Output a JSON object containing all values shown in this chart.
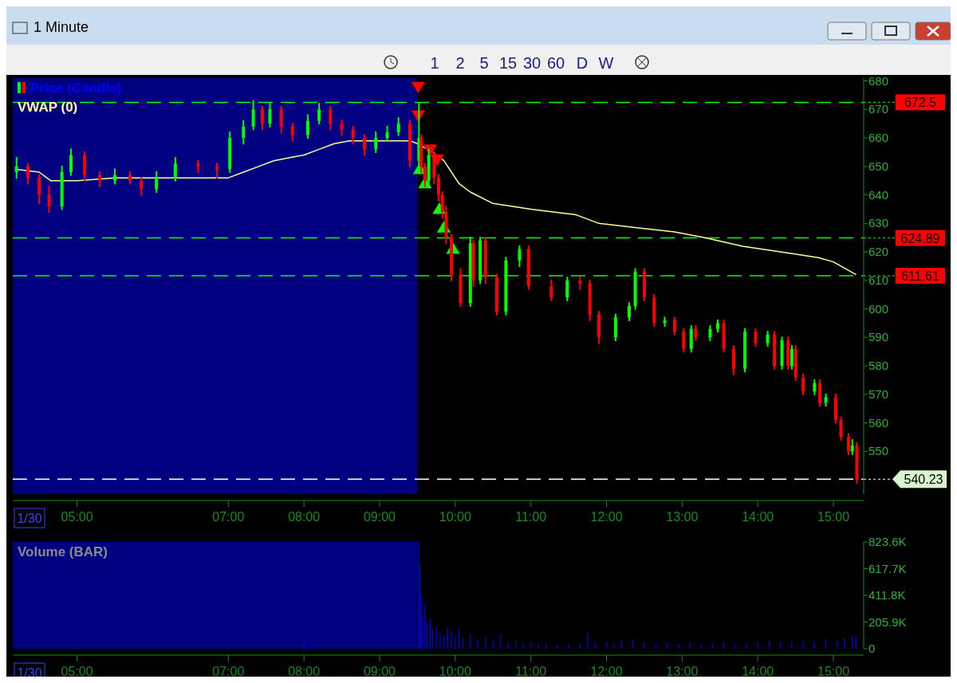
{
  "chart_data": [
    {
      "type": "other",
      "title": "1 Minute",
      "annotations": [
        "1",
        "2",
        "5",
        "15",
        "30",
        "60",
        "D",
        "W"
      ]
    },
    {
      "type": "candlestick",
      "legend": "top left",
      "grid": false,
      "xlim": [
        4.15,
        15.4
      ],
      "ylim": [
        535,
        681
      ],
      "xticks": [
        {
          "value": 5,
          "label": "05:00"
        },
        {
          "value": 7,
          "label": "07:00"
        },
        {
          "value": 8,
          "label": "08:00"
        },
        {
          "value": 9,
          "label": "09:00"
        },
        {
          "value": 10,
          "label": "10:00"
        },
        {
          "value": 11,
          "label": "11:00"
        },
        {
          "value": 12,
          "label": "12:00"
        },
        {
          "value": 13,
          "label": "13:00"
        },
        {
          "value": 14,
          "label": "14:00"
        },
        {
          "value": 15,
          "label": "15:00"
        }
      ],
      "yticks": [
        550,
        560,
        570,
        580,
        590,
        600,
        610,
        620,
        630,
        640,
        650,
        660,
        670,
        680
      ],
      "annotations": [
        "1/30"
      ],
      "bands": [
        {
          "axis": "x",
          "from": 4.15,
          "to": 9.5,
          "color": "#000080"
        }
      ],
      "ref_lines": [
        {
          "axis": "y",
          "value": 672.5,
          "label": "672.5",
          "color": "#00ff00",
          "line_style": "dashed"
        },
        {
          "axis": "y",
          "value": 624.89,
          "label": "624.89",
          "color": "#00ff00",
          "line_style": "dashed"
        },
        {
          "axis": "y",
          "value": 611.61,
          "label": "611.61",
          "color": "#00ff00",
          "line_style": "dashed"
        },
        {
          "axis": "y",
          "value": 540.23,
          "label": "540.23",
          "color": "#ffffff",
          "line_style": "dashed"
        }
      ],
      "series": [
        {
          "type": "candlestick",
          "name": "Price (Candle)",
          "color": "#0000ff",
          "colors": [
            "#00ff00",
            "#ff0000",
            "#ff0000",
            "#ff0000",
            "#00ff00",
            "#00ff00",
            "#ff0000",
            "#ff0000",
            "#00ff00",
            "#ff0000",
            "#ff0000",
            "#00ff00",
            "#00ff00",
            "#ff0000",
            "#ff0000",
            "#00ff00",
            "#00ff00",
            "#00ff00",
            "#ff0000",
            "#00ff00",
            "#ff0000",
            "#ff0000",
            "#00ff00",
            "#00ff00",
            "#ff0000",
            "#ff0000",
            "#ff0000",
            "#ff0000",
            "#00ff00",
            "#00ff00",
            "#00ff00",
            "#ff0000",
            "#00ff00",
            "#ff0000",
            "#ff0000",
            "#00ff00",
            "#ff0000",
            "#ff0000",
            "#ff0000",
            "#ff0000",
            "#ff0000",
            "#ff0000",
            "#00ff00",
            "#ff0000",
            "#00ff00",
            "#ff0000",
            "#ff0000",
            "#00ff00",
            "#00ff00",
            "#ff0000",
            "#ff0000",
            "#00ff00",
            "#ff0000",
            "#ff0000",
            "#ff0000",
            "#00ff00",
            "#00ff00",
            "#00ff00",
            "#ff0000",
            "#ff0000",
            "#00ff00",
            "#ff0000",
            "#ff0000",
            "#00ff00",
            "#ff0000",
            "#00ff00",
            "#00ff00",
            "#ff0000",
            "#ff0000",
            "#00ff00",
            "#ff0000",
            "#00ff00",
            "#ff0000",
            "#00ff00",
            "#ff0000",
            "#00ff00",
            "#ff0000",
            "#ff0000",
            "#00ff00",
            "#ff0000",
            "#00ff00",
            "#ff0000",
            "#ff0000",
            "#ff0000",
            "#00ff00",
            "#ff0000"
          ],
          "x": [
            4.2,
            4.35,
            4.5,
            4.63,
            4.8,
            4.92,
            5.1,
            5.3,
            5.5,
            5.7,
            5.85,
            6.05,
            6.3,
            6.6,
            6.85,
            7.02,
            7.2,
            7.33,
            7.45,
            7.55,
            7.7,
            7.85,
            8.05,
            8.2,
            8.35,
            8.5,
            8.65,
            8.8,
            8.95,
            9.1,
            9.25,
            9.4,
            9.52,
            9.55,
            9.6,
            9.65,
            9.72,
            9.78,
            9.83,
            9.88,
            9.95,
            10.07,
            10.2,
            10.24,
            10.33,
            10.4,
            10.55,
            10.67,
            10.85,
            10.97,
            11.27,
            11.48,
            11.65,
            11.78,
            11.9,
            12.12,
            12.3,
            12.38,
            12.5,
            12.63,
            12.77,
            12.9,
            13.02,
            13.12,
            13.18,
            13.37,
            13.47,
            13.55,
            13.68,
            13.83,
            13.97,
            14.13,
            14.22,
            14.32,
            14.4,
            14.45,
            14.5,
            14.6,
            14.75,
            14.82,
            14.9,
            15.03,
            15.1,
            15.2,
            15.25,
            15.31
          ],
          "ohlc": [
            [
              648,
              653,
              646,
              650
            ],
            [
              650,
              651,
              644,
              646
            ],
            [
              646,
              647,
              637,
              640
            ],
            [
              640,
              643,
              634,
              636
            ],
            [
              636,
              650,
              635,
              648
            ],
            [
              648,
              656,
              647,
              654
            ],
            [
              654,
              655,
              645,
              647
            ],
            [
              647,
              648,
              643,
              645
            ],
            [
              645,
              649,
              644,
              647
            ],
            [
              647,
              648,
              644,
              645
            ],
            [
              645,
              646,
              640,
              642
            ],
            [
              642,
              648,
              641,
              646
            ],
            [
              646,
              653,
              645,
              651
            ],
            [
              651,
              652,
              648,
              650
            ],
            [
              650,
              651,
              646,
              649
            ],
            [
              649,
              662,
              648,
              660
            ],
            [
              660,
              666,
              658,
              664
            ],
            [
              664,
              673,
              663,
              670
            ],
            [
              670,
              671,
              663,
              665
            ],
            [
              665,
              672,
              664,
              670
            ],
            [
              670,
              671,
              662,
              664
            ],
            [
              664,
              665,
              659,
              661
            ],
            [
              661,
              668,
              660,
              666
            ],
            [
              666,
              672,
              665,
              670
            ],
            [
              670,
              671,
              663,
              665
            ],
            [
              665,
              666,
              661,
              663
            ],
            [
              663,
              664,
              658,
              660
            ],
            [
              660,
              661,
              654,
              656
            ],
            [
              656,
              662,
              655,
              660
            ],
            [
              660,
              664,
              659,
              662
            ],
            [
              662,
              667,
              661,
              665
            ],
            [
              665,
              666,
              650,
              652
            ],
            [
              652,
              672,
              650,
              660
            ],
            [
              660,
              661,
              648,
              650
            ],
            [
              650,
              651,
              643,
              645
            ],
            [
              645,
              656,
              644,
              654
            ],
            [
              654,
              655,
              644,
              646
            ],
            [
              646,
              647,
              638,
              640
            ],
            [
              640,
              641,
              632,
              634
            ],
            [
              634,
              636,
              623,
              625
            ],
            [
              625,
              626,
              610,
              612
            ],
            [
              612,
              614,
              601,
              602
            ],
            [
              602,
              625,
              601,
              623
            ],
            [
              623,
              624,
              608,
              610
            ],
            [
              610,
              625,
              609,
              624
            ],
            [
              624,
              625,
              609,
              611
            ],
            [
              611,
              612,
              598,
              599
            ],
            [
              599,
              618,
              598,
              617
            ],
            [
              617,
              622,
              615,
              621
            ],
            [
              621,
              622,
              607,
              608
            ],
            [
              608,
              610,
              603,
              604
            ],
            [
              604,
              611,
              603,
              610
            ],
            [
              610,
              611,
              607,
              609
            ],
            [
              609,
              610,
              596,
              598
            ],
            [
              598,
              599,
              588,
              590
            ],
            [
              590,
              598,
              589,
              597
            ],
            [
              597,
              602,
              596,
              601
            ],
            [
              601,
              614,
              600,
              613
            ],
            [
              613,
              614,
              603,
              604
            ],
            [
              604,
              605,
              594,
              595
            ],
            [
              595,
              597,
              594,
              596
            ],
            [
              596,
              597,
              591,
              592
            ],
            [
              592,
              593,
              585,
              586
            ],
            [
              586,
              594,
              585,
              593
            ],
            [
              593,
              594,
              589,
              590
            ],
            [
              590,
              594,
              589,
              593
            ],
            [
              593,
              596,
              592,
              595
            ],
            [
              595,
              596,
              585,
              586
            ],
            [
              586,
              587,
              577,
              579
            ],
            [
              579,
              593,
              578,
              592
            ],
            [
              592,
              593,
              587,
              588
            ],
            [
              588,
              592,
              587,
              591
            ],
            [
              591,
              592,
              579,
              580
            ],
            [
              580,
              590,
              579,
              589
            ],
            [
              589,
              590,
              579,
              580
            ],
            [
              580,
              587,
              579,
              586
            ],
            [
              586,
              587,
              575,
              576
            ],
            [
              576,
              577,
              570,
              571
            ],
            [
              571,
              575,
              570,
              574
            ],
            [
              574,
              575,
              566,
              567
            ],
            [
              567,
              570,
              566,
              569
            ],
            [
              569,
              570,
              560,
              561
            ],
            [
              561,
              562,
              554,
              555
            ],
            [
              555,
              556,
              549,
              550
            ],
            [
              550,
              554,
              549,
              552
            ],
            [
              552,
              553,
              539,
              540
            ]
          ]
        },
        {
          "type": "line",
          "name": "VWAP (0)",
          "color": "#ffff99",
          "x": [
            4.2,
            4.5,
            4.65,
            5.0,
            5.5,
            6.0,
            6.5,
            7.0,
            7.2,
            7.4,
            7.6,
            7.8,
            8.0,
            8.2,
            8.4,
            8.6,
            9.0,
            9.4,
            9.5,
            9.7,
            9.85,
            10.05,
            10.2,
            10.5,
            11.0,
            11.6,
            11.9,
            12.4,
            12.9,
            13.3,
            13.8,
            14.3,
            14.8,
            15.0,
            15.3
          ],
          "values": [
            649,
            648,
            645,
            645,
            646,
            646,
            646,
            646,
            648,
            650,
            652,
            653,
            654,
            656,
            658,
            659,
            659,
            659,
            658,
            655,
            652,
            644,
            641,
            637,
            635,
            633,
            630,
            628.5,
            627,
            625,
            622,
            620,
            618,
            616.5,
            612
          ]
        },
        {
          "type": "scatter",
          "marker": "triangle",
          "color": "#00ff00",
          "x": [
            9.53,
            9.6,
            9.79,
            9.85,
            9.97
          ],
          "values": [
            649,
            644,
            635,
            628.5,
            621
          ]
        },
        {
          "type": "scatter",
          "marker": "triangle-down",
          "color": "#ff0000",
          "x": [
            9.51,
            9.51,
            9.67,
            9.76
          ],
          "values": [
            678,
            668,
            656,
            652.5
          ]
        }
      ]
    },
    {
      "type": "bar",
      "legend": "top left",
      "grid": false,
      "xlim": [
        4.15,
        15.4
      ],
      "ylim": [
        0,
        823600
      ],
      "xticks": [
        {
          "value": 5,
          "label": "05:00"
        },
        {
          "value": 7,
          "label": "07:00"
        },
        {
          "value": 8,
          "label": "08:00"
        },
        {
          "value": 9,
          "label": "09:00"
        },
        {
          "value": 10,
          "label": "10:00"
        },
        {
          "value": 11,
          "label": "11:00"
        },
        {
          "value": 12,
          "label": "12:00"
        },
        {
          "value": 13,
          "label": "13:00"
        },
        {
          "value": 14,
          "label": "14:00"
        },
        {
          "value": 15,
          "label": "15:00"
        }
      ],
      "yticks": [
        0,
        {
          "value": 205900,
          "label": "205.9K"
        },
        {
          "value": 411800,
          "label": "411.8K"
        },
        {
          "value": 617700,
          "label": "617.7K"
        },
        {
          "value": 823600,
          "label": "823.6K"
        }
      ],
      "annotations": [
        "1/30"
      ],
      "bands": [
        {
          "axis": "x",
          "from": 4.15,
          "to": 9.5,
          "color": "#000080"
        }
      ],
      "series": [
        {
          "type": "bar",
          "name": "Volume (BAR)",
          "color": "#0000ff",
          "x": [
            8.0,
            9.52,
            9.53,
            9.55,
            9.57,
            9.6,
            9.63,
            9.67,
            9.7,
            9.75,
            9.8,
            9.85,
            9.9,
            9.95,
            10.0,
            10.05,
            10.1,
            10.2,
            10.3,
            10.4,
            10.5,
            10.6,
            10.7,
            10.8,
            10.9,
            11.0,
            11.1,
            11.2,
            11.35,
            11.5,
            11.65,
            11.75,
            11.85,
            12.0,
            12.1,
            12.2,
            12.35,
            12.5,
            12.65,
            12.8,
            12.95,
            13.1,
            13.25,
            13.4,
            13.55,
            13.7,
            13.85,
            14.0,
            14.15,
            14.3,
            14.45,
            14.6,
            14.75,
            14.9,
            15.05,
            15.15,
            15.25,
            15.3
          ],
          "values": [
            40000,
            823000,
            650000,
            420000,
            250000,
            350000,
            200000,
            230000,
            150000,
            170000,
            120000,
            100000,
            160000,
            130000,
            90000,
            160000,
            80000,
            110000,
            70000,
            90000,
            60000,
            110000,
            50000,
            60000,
            40000,
            50000,
            40000,
            45000,
            30000,
            35000,
            40000,
            120000,
            60000,
            50000,
            40000,
            60000,
            70000,
            50000,
            40000,
            50000,
            40000,
            45000,
            30000,
            40000,
            50000,
            40000,
            45000,
            50000,
            60000,
            50000,
            55000,
            60000,
            50000,
            70000,
            60000,
            80000,
            100000,
            90000
          ]
        }
      ]
    }
  ]
}
